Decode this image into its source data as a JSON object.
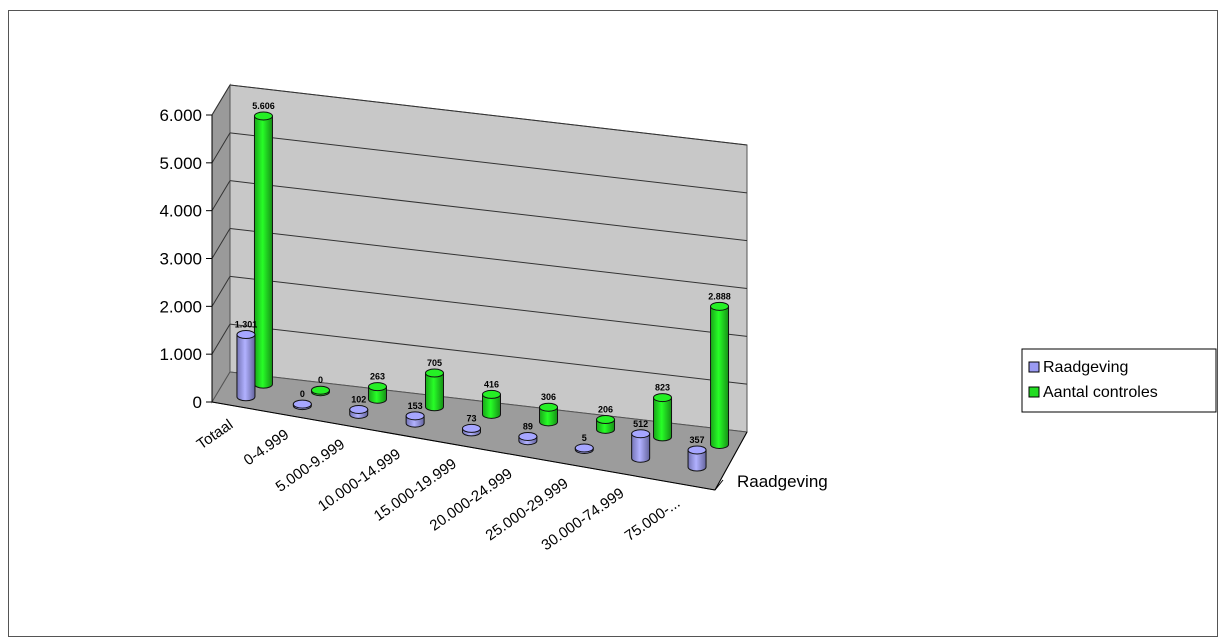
{
  "chart_data": {
    "type": "bar",
    "title": "",
    "xlabel": "",
    "ylabel": "",
    "depth_axis_label": "Raadgeving",
    "categories": [
      "Totaal",
      "0-4.999",
      "5.000-9.999",
      "10.000-14.999",
      "15.000-19.999",
      "20.000-24.999",
      "25.000-29.999",
      "30.000-74.999",
      "75.000-..."
    ],
    "ylim": [
      0,
      6000
    ],
    "y_ticks": [
      "0",
      "1.000",
      "2.000",
      "3.000",
      "4.000",
      "5.000",
      "6.000"
    ],
    "y_tick_values": [
      0,
      1000,
      2000,
      3000,
      4000,
      5000,
      6000
    ],
    "series": [
      {
        "name": "Raadgeving",
        "color": "#9a9af2",
        "values": [
          1301,
          0,
          102,
          153,
          73,
          89,
          5,
          512,
          357
        ],
        "labels": [
          "1.301",
          "0",
          "102",
          "153",
          "73",
          "89",
          "5",
          "512",
          "357"
        ]
      },
      {
        "name": "Aantal controles",
        "color": "#22dd22",
        "values": [
          5606,
          0,
          263,
          705,
          416,
          306,
          206,
          823,
          2888
        ],
        "labels": [
          "5.606",
          "0",
          "263",
          "705",
          "416",
          "306",
          "206",
          "823",
          "2.888"
        ]
      }
    ],
    "legend_position": "right",
    "grid": true,
    "style": "3d-cylinder"
  }
}
